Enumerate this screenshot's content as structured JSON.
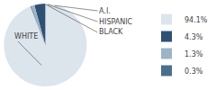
{
  "chart_data": {
    "type": "pie",
    "categories": [
      "WHITE",
      "A.I.",
      "HISPANIC",
      "BLACK"
    ],
    "values": [
      94.1,
      4.3,
      1.3,
      0.3
    ],
    "value_labels": [
      "94.1%",
      "4.3%",
      "1.3%",
      "0.3%"
    ],
    "colors": [
      "#dce4ec",
      "#2e5073",
      "#9db3c8",
      "#4a6f8a"
    ],
    "legend": "right"
  }
}
